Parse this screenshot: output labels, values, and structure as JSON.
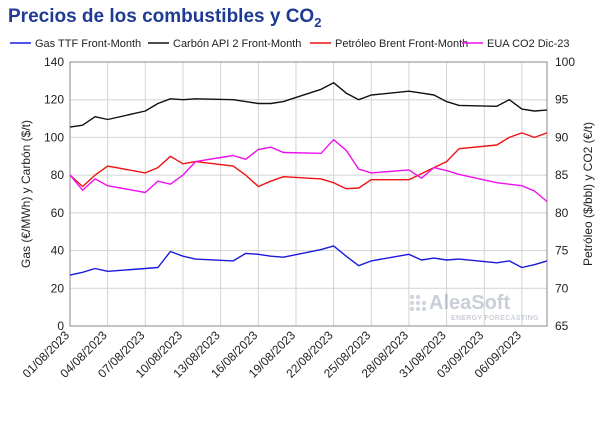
{
  "chart_data": {
    "type": "line",
    "title": "Precios de los combustibles y CO",
    "title_subscript": "2",
    "ylabel_left": "Gas (€/MWh) y Carbón ($/t)",
    "ylabel_right": "Petróleo ($/bbl) y CO2 (€/t)",
    "ylim_left": [
      0,
      140
    ],
    "ylim_right": [
      65,
      100
    ],
    "yticks_left": [
      0,
      20,
      40,
      60,
      80,
      100,
      120,
      140
    ],
    "yticks_right": [
      65,
      70,
      75,
      80,
      85,
      90,
      95,
      100
    ],
    "x_tick_labels": [
      "01/08/2023",
      "04/08/2023",
      "07/08/2023",
      "10/08/2023",
      "13/08/2023",
      "16/08/2023",
      "19/08/2023",
      "22/08/2023",
      "25/08/2023",
      "28/08/2023",
      "31/08/2023",
      "03/09/2023",
      "06/09/2023"
    ],
    "x_start": "2023-08-01",
    "x_end": "2023-09-08",
    "grid": true,
    "legend_position": "top",
    "series": [
      {
        "name": "Gas TTF Front-Month",
        "axis": "left",
        "color": "#1a1adf",
        "points": [
          [
            "2023-08-01",
            27
          ],
          [
            "2023-08-02",
            28.5
          ],
          [
            "2023-08-03",
            30.5
          ],
          [
            "2023-08-04",
            29
          ],
          [
            "2023-08-07",
            30.5
          ],
          [
            "2023-08-08",
            31
          ],
          [
            "2023-08-09",
            39.5
          ],
          [
            "2023-08-10",
            37
          ],
          [
            "2023-08-11",
            35.5
          ],
          [
            "2023-08-14",
            34.5
          ],
          [
            "2023-08-15",
            38.5
          ],
          [
            "2023-08-16",
            38
          ],
          [
            "2023-08-17",
            37
          ],
          [
            "2023-08-18",
            36.5
          ],
          [
            "2023-08-21",
            40.5
          ],
          [
            "2023-08-22",
            42.5
          ],
          [
            "2023-08-23",
            37
          ],
          [
            "2023-08-24",
            32
          ],
          [
            "2023-08-25",
            34.5
          ],
          [
            "2023-08-28",
            38
          ],
          [
            "2023-08-29",
            35
          ],
          [
            "2023-08-30",
            36
          ],
          [
            "2023-08-31",
            35
          ],
          [
            "2023-09-01",
            35.5
          ],
          [
            "2023-09-04",
            33.5
          ],
          [
            "2023-09-05",
            34.5
          ],
          [
            "2023-09-06",
            31
          ],
          [
            "2023-09-07",
            32.5
          ],
          [
            "2023-09-08",
            34.5
          ]
        ]
      },
      {
        "name": "Carbón API 2 Front-Month",
        "axis": "left",
        "color": "#111111",
        "points": [
          [
            "2023-08-01",
            105.5
          ],
          [
            "2023-08-02",
            106.5
          ],
          [
            "2023-08-03",
            111
          ],
          [
            "2023-08-04",
            109.5
          ],
          [
            "2023-08-07",
            114
          ],
          [
            "2023-08-08",
            118
          ],
          [
            "2023-08-09",
            120.5
          ],
          [
            "2023-08-10",
            120
          ],
          [
            "2023-08-11",
            120.5
          ],
          [
            "2023-08-14",
            120
          ],
          [
            "2023-08-15",
            119
          ],
          [
            "2023-08-16",
            118
          ],
          [
            "2023-08-17",
            118
          ],
          [
            "2023-08-18",
            119
          ],
          [
            "2023-08-21",
            125.5
          ],
          [
            "2023-08-22",
            129
          ],
          [
            "2023-08-23",
            123.5
          ],
          [
            "2023-08-24",
            120
          ],
          [
            "2023-08-25",
            122.5
          ],
          [
            "2023-08-28",
            124.5
          ],
          [
            "2023-08-29",
            123.5
          ],
          [
            "2023-08-30",
            122.5
          ],
          [
            "2023-08-31",
            119
          ],
          [
            "2023-09-01",
            117
          ],
          [
            "2023-09-04",
            116.5
          ],
          [
            "2023-09-05",
            120
          ],
          [
            "2023-09-06",
            115
          ],
          [
            "2023-09-07",
            114
          ],
          [
            "2023-09-08",
            114.5
          ]
        ]
      },
      {
        "name": "Petróleo Brent Front-Month",
        "axis": "right",
        "color": "#ee1111",
        "points": [
          [
            "2023-08-01",
            85
          ],
          [
            "2023-08-02",
            83.5
          ],
          [
            "2023-08-03",
            85
          ],
          [
            "2023-08-04",
            86.2
          ],
          [
            "2023-08-07",
            85.3
          ],
          [
            "2023-08-08",
            86
          ],
          [
            "2023-08-09",
            87.5
          ],
          [
            "2023-08-10",
            86.5
          ],
          [
            "2023-08-11",
            86.8
          ],
          [
            "2023-08-14",
            86.2
          ],
          [
            "2023-08-15",
            85
          ],
          [
            "2023-08-16",
            83.5
          ],
          [
            "2023-08-17",
            84.2
          ],
          [
            "2023-08-18",
            84.8
          ],
          [
            "2023-08-21",
            84.5
          ],
          [
            "2023-08-22",
            84
          ],
          [
            "2023-08-23",
            83.2
          ],
          [
            "2023-08-24",
            83.3
          ],
          [
            "2023-08-25",
            84.4
          ],
          [
            "2023-08-28",
            84.4
          ],
          [
            "2023-08-29",
            85.2
          ],
          [
            "2023-08-30",
            86
          ],
          [
            "2023-08-31",
            86.8
          ],
          [
            "2023-09-01",
            88.5
          ],
          [
            "2023-09-04",
            89
          ],
          [
            "2023-09-05",
            90
          ],
          [
            "2023-09-06",
            90.6
          ],
          [
            "2023-09-07",
            90
          ],
          [
            "2023-09-08",
            90.6
          ]
        ]
      },
      {
        "name": "EUA CO2 Dic-23",
        "axis": "right",
        "color": "#ee11ee",
        "points": [
          [
            "2023-08-01",
            85
          ],
          [
            "2023-08-02",
            83
          ],
          [
            "2023-08-03",
            84.5
          ],
          [
            "2023-08-04",
            83.6
          ],
          [
            "2023-08-07",
            82.7
          ],
          [
            "2023-08-08",
            84.2
          ],
          [
            "2023-08-09",
            83.8
          ],
          [
            "2023-08-10",
            85
          ],
          [
            "2023-08-11",
            86.8
          ],
          [
            "2023-08-14",
            87.6
          ],
          [
            "2023-08-15",
            87.1
          ],
          [
            "2023-08-16",
            88.4
          ],
          [
            "2023-08-17",
            88.7
          ],
          [
            "2023-08-18",
            88
          ],
          [
            "2023-08-21",
            87.9
          ],
          [
            "2023-08-22",
            89.7
          ],
          [
            "2023-08-23",
            88.3
          ],
          [
            "2023-08-24",
            85.8
          ],
          [
            "2023-08-25",
            85.3
          ],
          [
            "2023-08-28",
            85.7
          ],
          [
            "2023-08-29",
            84.6
          ],
          [
            "2023-08-30",
            86
          ],
          [
            "2023-08-31",
            85.6
          ],
          [
            "2023-09-01",
            85.1
          ],
          [
            "2023-09-04",
            84
          ],
          [
            "2023-09-05",
            83.8
          ],
          [
            "2023-09-06",
            83.6
          ],
          [
            "2023-09-07",
            82.9
          ],
          [
            "2023-09-08",
            81.5
          ]
        ]
      }
    ]
  },
  "watermark": {
    "brand": "AleaSoft",
    "tagline": "ENERGY FORECASTING"
  }
}
